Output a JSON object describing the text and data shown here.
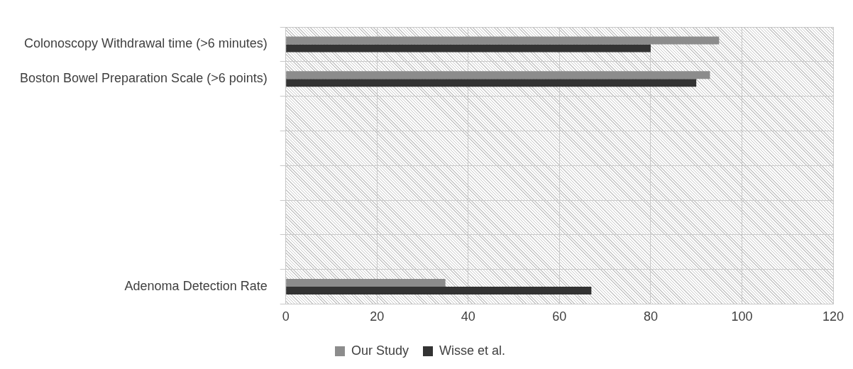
{
  "chart_data": {
    "type": "bar",
    "orientation": "horizontal",
    "categories": [
      "Colonoscopy Withdrawal time (>6 minutes)",
      "Boston Bowel Preparation Scale (>6 points)",
      null,
      null,
      null,
      null,
      null,
      "Adenoma Detection Rate"
    ],
    "series": [
      {
        "name": "Our Study",
        "color": "#8c8c8c",
        "values": [
          95,
          93,
          null,
          null,
          null,
          null,
          null,
          35
        ]
      },
      {
        "name": "Wisse et al.",
        "color": "#333333",
        "values": [
          80,
          90,
          null,
          null,
          null,
          null,
          null,
          67
        ]
      }
    ],
    "xlim": [
      0,
      120
    ],
    "xticks": [
      0,
      20,
      40,
      60,
      80,
      100,
      120
    ],
    "grid": true,
    "legend": "bottom"
  }
}
